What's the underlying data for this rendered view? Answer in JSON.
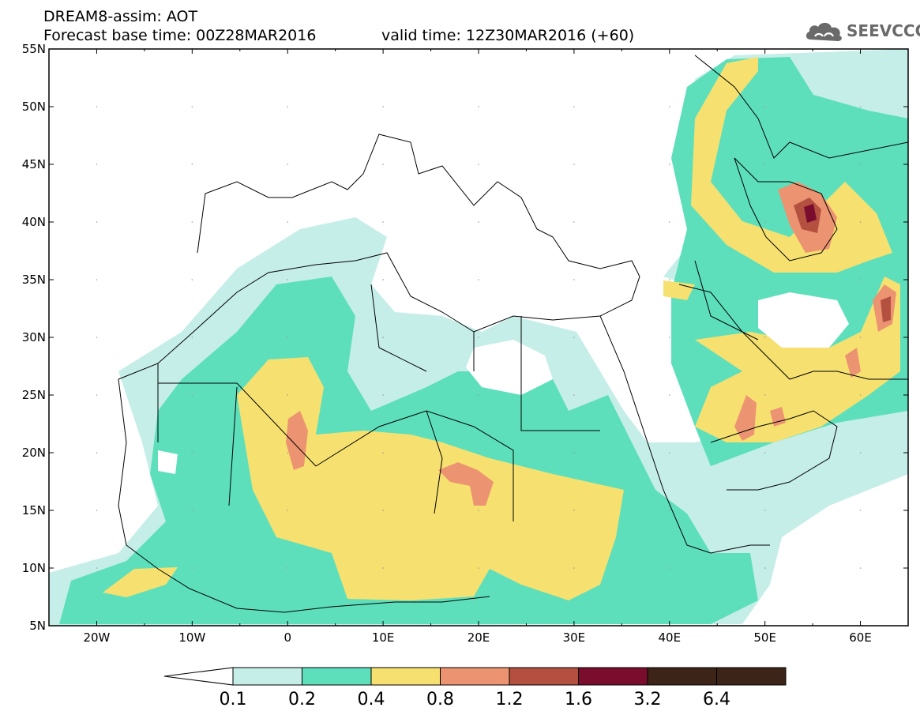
{
  "header": {
    "line1": "DREAM8-assim: AOT",
    "line2": "Forecast base time: 00Z28MAR2016",
    "valid": "valid time: 12Z30MAR2016 (+60)"
  },
  "logo": {
    "text": "SEEVCCC",
    "icon": "cloud-icon",
    "color": "#6a6a6a"
  },
  "map": {
    "lon_range": [
      -25,
      65
    ],
    "lat_range": [
      5,
      55
    ],
    "lat_ticks": [
      "55N",
      "50N",
      "45N",
      "40N",
      "35N",
      "30N",
      "25N",
      "20N",
      "15N",
      "10N",
      "5N"
    ],
    "lon_ticks": [
      "20W",
      "10W",
      "0",
      "10E",
      "20E",
      "30E",
      "40E",
      "50E",
      "60E"
    ]
  },
  "colorbar": {
    "levels": [
      "0.1",
      "0.2",
      "0.4",
      "0.8",
      "1.2",
      "1.6",
      "3.2",
      "6.4"
    ],
    "colors": [
      "#ffffff",
      "#c5eee8",
      "#5ddfbc",
      "#f6e070",
      "#ec9471",
      "#b45040",
      "#7a0c2e",
      "#3c2418",
      "#8e6aa8"
    ]
  }
}
